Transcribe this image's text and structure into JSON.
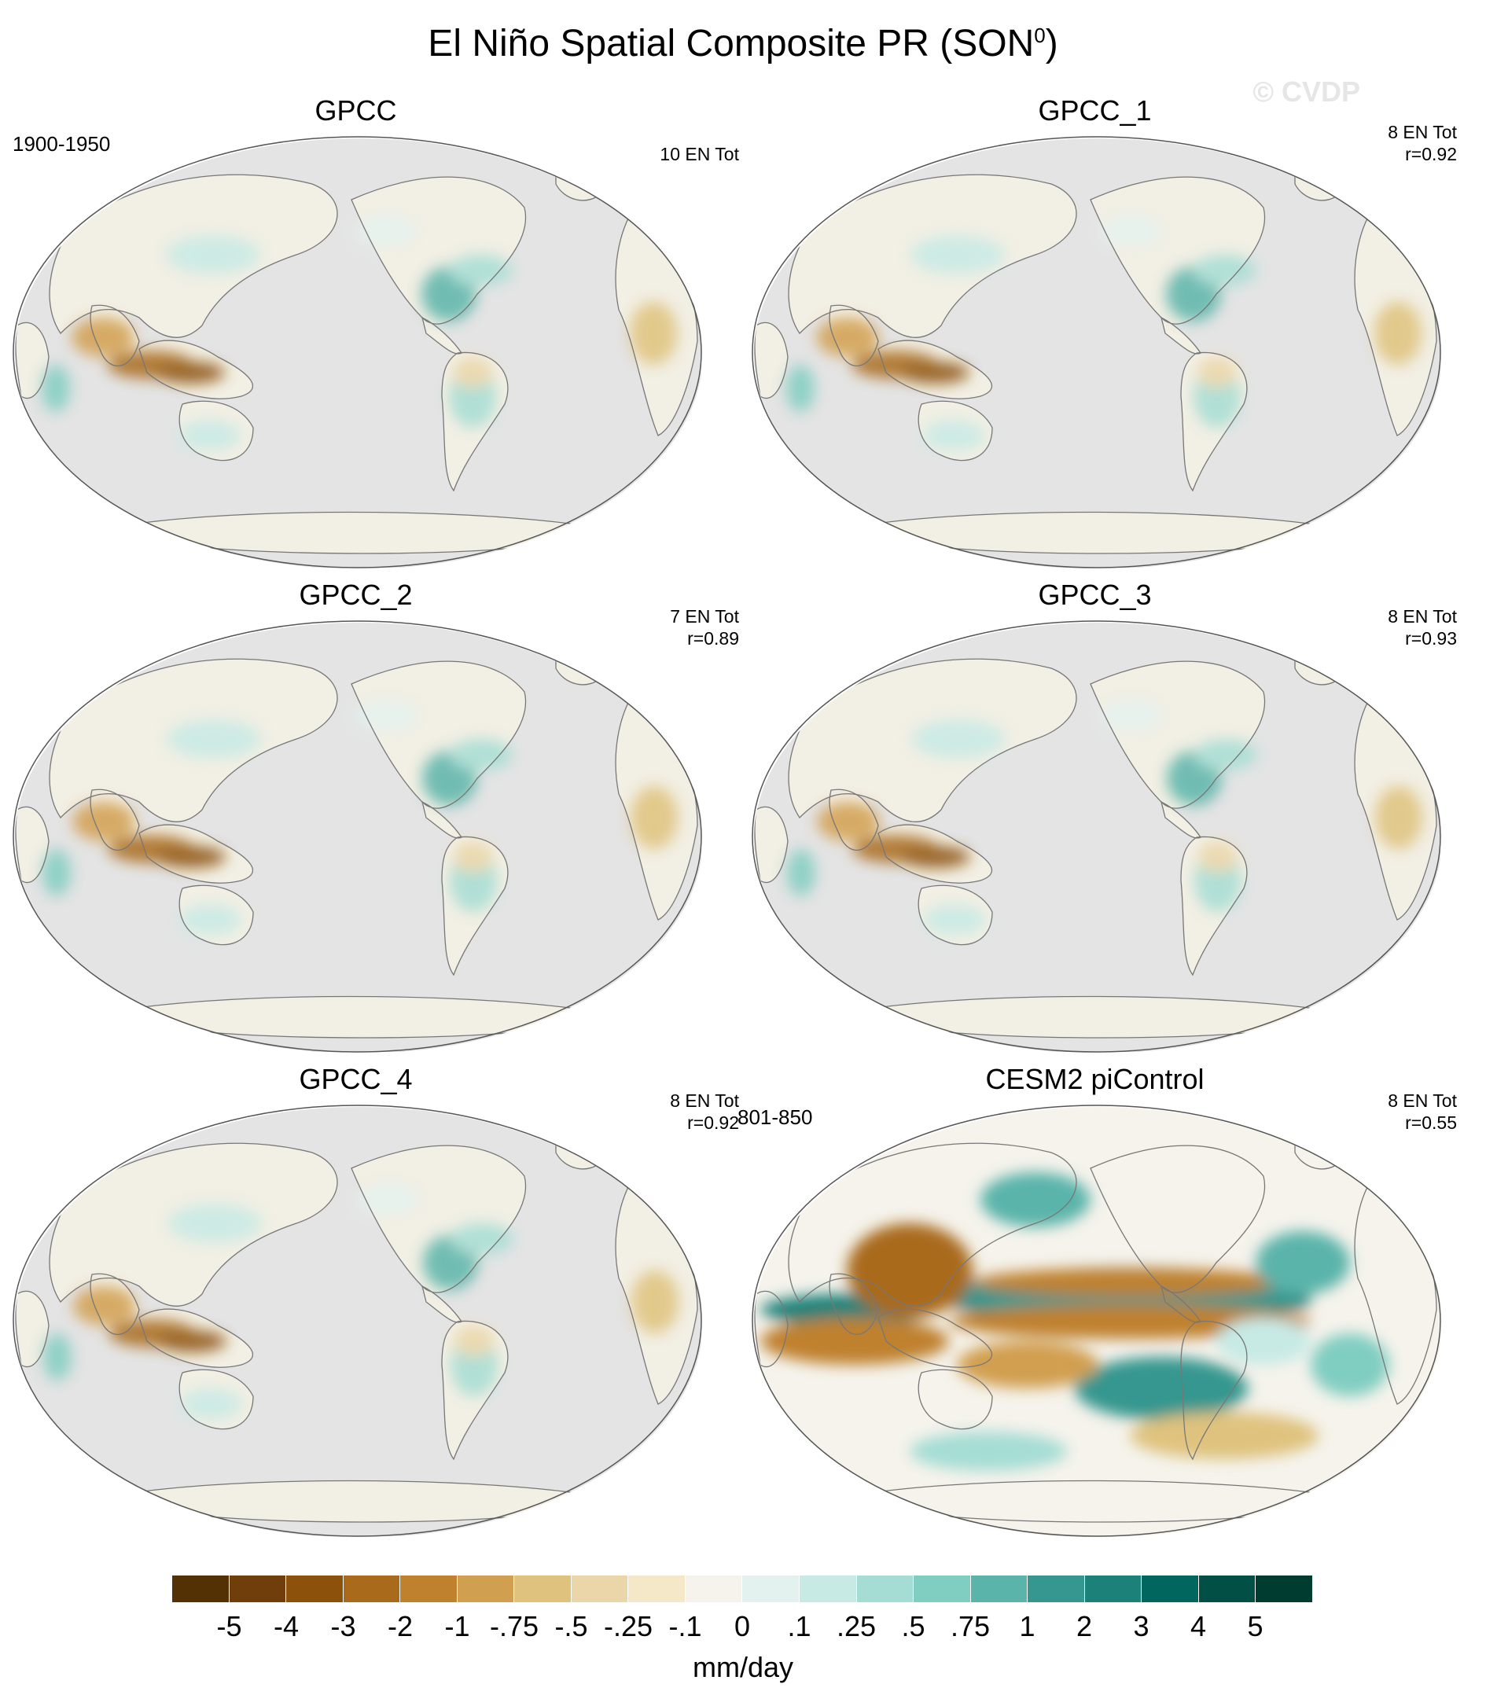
{
  "title_main": "El Niño Spatial Composite PR (SON",
  "title_sup": "0",
  "title_close": ")",
  "watermark": "© CVDP",
  "panels": [
    {
      "title": "GPCC",
      "years": "1900-1950",
      "events": "10 EN Tot",
      "r": "",
      "style": "obs"
    },
    {
      "title": "GPCC_1",
      "years": "",
      "events": "8 EN Tot",
      "r": "r=0.92",
      "style": "obs"
    },
    {
      "title": "GPCC_2",
      "years": "",
      "events": "7 EN Tot",
      "r": "r=0.89",
      "style": "obs"
    },
    {
      "title": "GPCC_3",
      "years": "",
      "events": "8 EN Tot",
      "r": "r=0.93",
      "style": "obs"
    },
    {
      "title": "GPCC_4",
      "years": "",
      "events": "8 EN Tot",
      "r": "r=0.92",
      "style": "obs"
    },
    {
      "title": "CESM2 piControl",
      "years": "801-850",
      "events": "8 EN Tot",
      "r": "r=0.55",
      "style": "model"
    }
  ],
  "colorbar": {
    "units": "mm/day",
    "labels": [
      "-5",
      "-4",
      "-3",
      "-2",
      "-1",
      "-.75",
      "-.5",
      "-.25",
      "-.1",
      "0",
      ".1",
      ".25",
      ".5",
      ".75",
      "1",
      "2",
      "3",
      "4",
      "5"
    ],
    "colors": [
      "#543005",
      "#6f3e0b",
      "#8c510a",
      "#a96a1c",
      "#bf812d",
      "#d19f50",
      "#dfc27d",
      "#ead6a8",
      "#f4e8c8",
      "#f5f3ec",
      "#e4f2ef",
      "#c7eae5",
      "#a5ddd4",
      "#80cdc1",
      "#5ab4aa",
      "#35978f",
      "#1c8178",
      "#01665e",
      "#024f45",
      "#003c30"
    ]
  }
}
